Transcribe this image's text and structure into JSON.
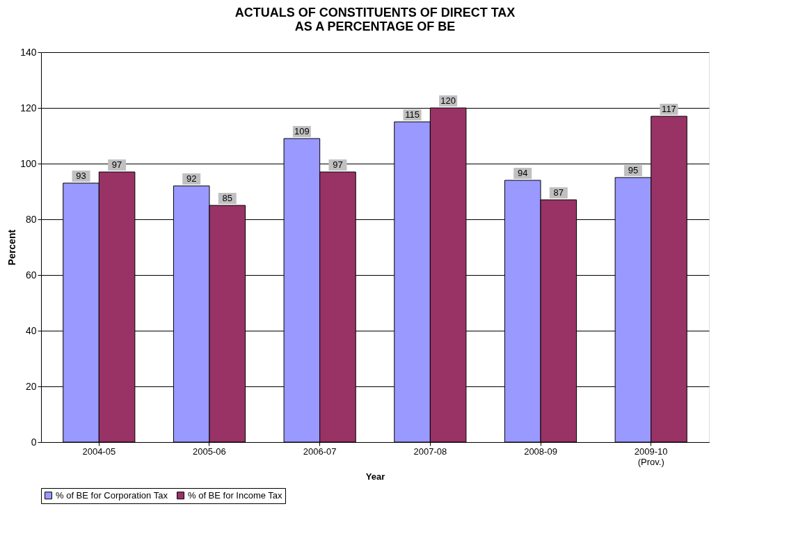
{
  "chart_data": {
    "type": "bar",
    "title": "ACTUALS OF CONSTITUENTS OF DIRECT TAX\nAS A PERCENTAGE OF BE",
    "xlabel": "Year",
    "ylabel": "Percent",
    "categories": [
      "2004-05",
      "2005-06",
      "2006-07",
      "2007-08",
      "2008-09",
      "2009-10\n(Prov.)"
    ],
    "series": [
      {
        "name": "% of BE for Corporation Tax",
        "color": "#9999ff",
        "values": [
          93,
          92,
          109,
          115,
          94,
          95
        ]
      },
      {
        "name": "% of BE for Income Tax",
        "color": "#993366",
        "values": [
          97,
          85,
          97,
          120,
          87,
          117
        ]
      }
    ],
    "ylim": [
      0,
      140
    ],
    "yticks": [
      0,
      20,
      40,
      60,
      80,
      100,
      120,
      140
    ],
    "grid": "y",
    "legend": "bottom",
    "data_labels": true
  }
}
